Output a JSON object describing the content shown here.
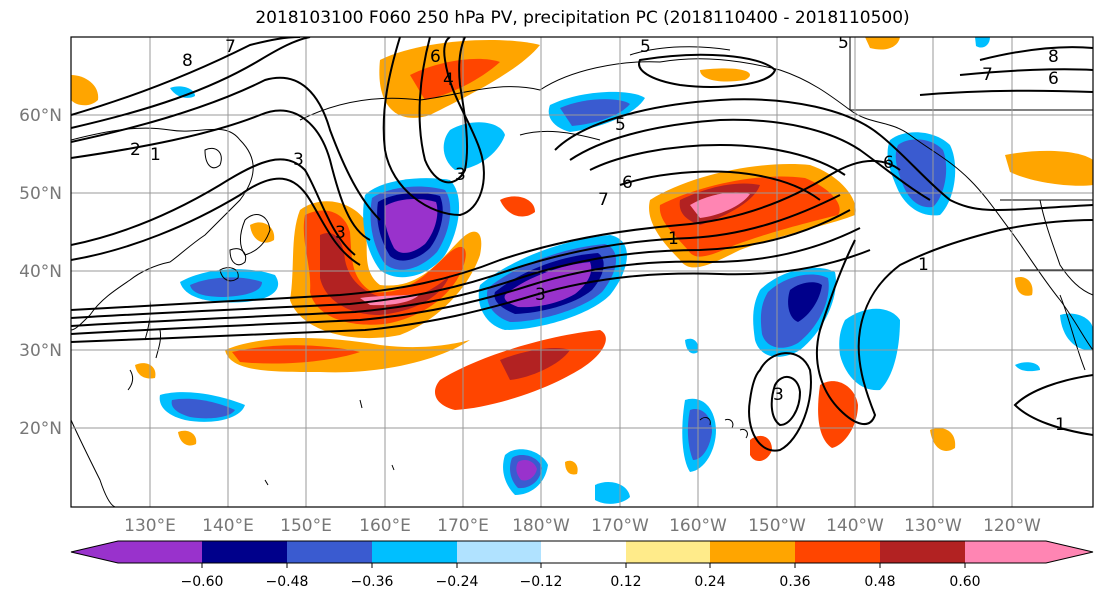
{
  "title": "2018103100 F060 250 hPa PV, precipitation PC (2018110400 - 2018110500)",
  "latitude_labels": [
    "60°N",
    "50°N",
    "40°N",
    "30°N",
    "20°N"
  ],
  "longitude_labels": [
    "130°E",
    "140°E",
    "150°E",
    "160°E",
    "170°E",
    "180°W",
    "170°W",
    "160°W",
    "150°W",
    "140°W",
    "130°W",
    "120°W"
  ],
  "colorbar": {
    "colors": [
      "#9932cc",
      "#00008b",
      "#3a5bd0",
      "#00bfff",
      "#b0e2ff",
      "#ffffff",
      "#ffeb8a",
      "#ffa500",
      "#ff4500",
      "#b22222",
      "#ff85b3"
    ],
    "tick_labels": [
      "−0.60",
      "−0.48",
      "−0.36",
      "−0.24",
      "−0.12",
      "0.12",
      "0.24",
      "0.36",
      "0.48",
      "0.60"
    ]
  },
  "pv_contour_labels": [
    "8",
    "7",
    "6",
    "4",
    "5",
    "5",
    "6",
    "8",
    "7",
    "6",
    "2",
    "1",
    "3",
    "3",
    "3",
    "5",
    "6",
    "7",
    "1",
    "3",
    "1",
    "1",
    "3"
  ]
}
